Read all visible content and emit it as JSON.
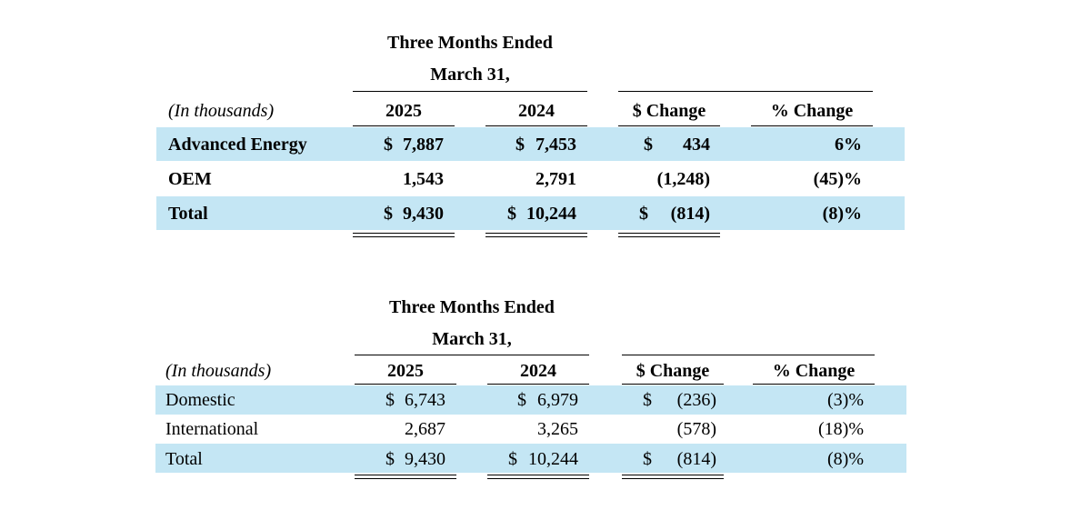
{
  "table1": {
    "period_line1": "Three Months Ended",
    "period_line2": "March 31,",
    "units": "(In thousands)",
    "col_2025": "2025",
    "col_2024": "2024",
    "col_dollar_change": "$ Change",
    "col_pct_change": "% Change",
    "rows": [
      {
        "label": "Advanced Energy",
        "s2025": "$",
        "v2025": "7,887",
        "s2024": "$",
        "v2024": "7,453",
        "sch": "$",
        "vch": "434",
        "pct": "6%"
      },
      {
        "label": "OEM",
        "s2025": "",
        "v2025": "1,543",
        "s2024": "",
        "v2024": "2,791",
        "sch": "",
        "vch": "(1,248)",
        "pct": "(45)%"
      },
      {
        "label": "Total",
        "s2025": "$",
        "v2025": "9,430",
        "s2024": "$",
        "v2024": "10,244",
        "sch": "$",
        "vch": "(814)",
        "pct": "(8)%"
      }
    ]
  },
  "table2": {
    "period_line1": "Three Months Ended",
    "period_line2": "March 31,",
    "units": "(In thousands)",
    "col_2025": "2025",
    "col_2024": "2024",
    "col_dollar_change": "$ Change",
    "col_pct_change": "% Change",
    "rows": [
      {
        "label": "Domestic",
        "s2025": "$",
        "v2025": "6,743",
        "s2024": "$",
        "v2024": "6,979",
        "sch": "$",
        "vch": "(236)",
        "pct": "(3)%"
      },
      {
        "label": "International",
        "s2025": "",
        "v2025": "2,687",
        "s2024": "",
        "v2024": "3,265",
        "sch": "",
        "vch": "(578)",
        "pct": "(18)%"
      },
      {
        "label": "Total",
        "s2025": "$",
        "v2025": "9,430",
        "s2024": "$",
        "v2024": "10,244",
        "sch": "$",
        "vch": "(814)",
        "pct": "(8)%"
      }
    ]
  },
  "colors": {
    "row_band": "#c4e6f4",
    "text": "#000000"
  }
}
